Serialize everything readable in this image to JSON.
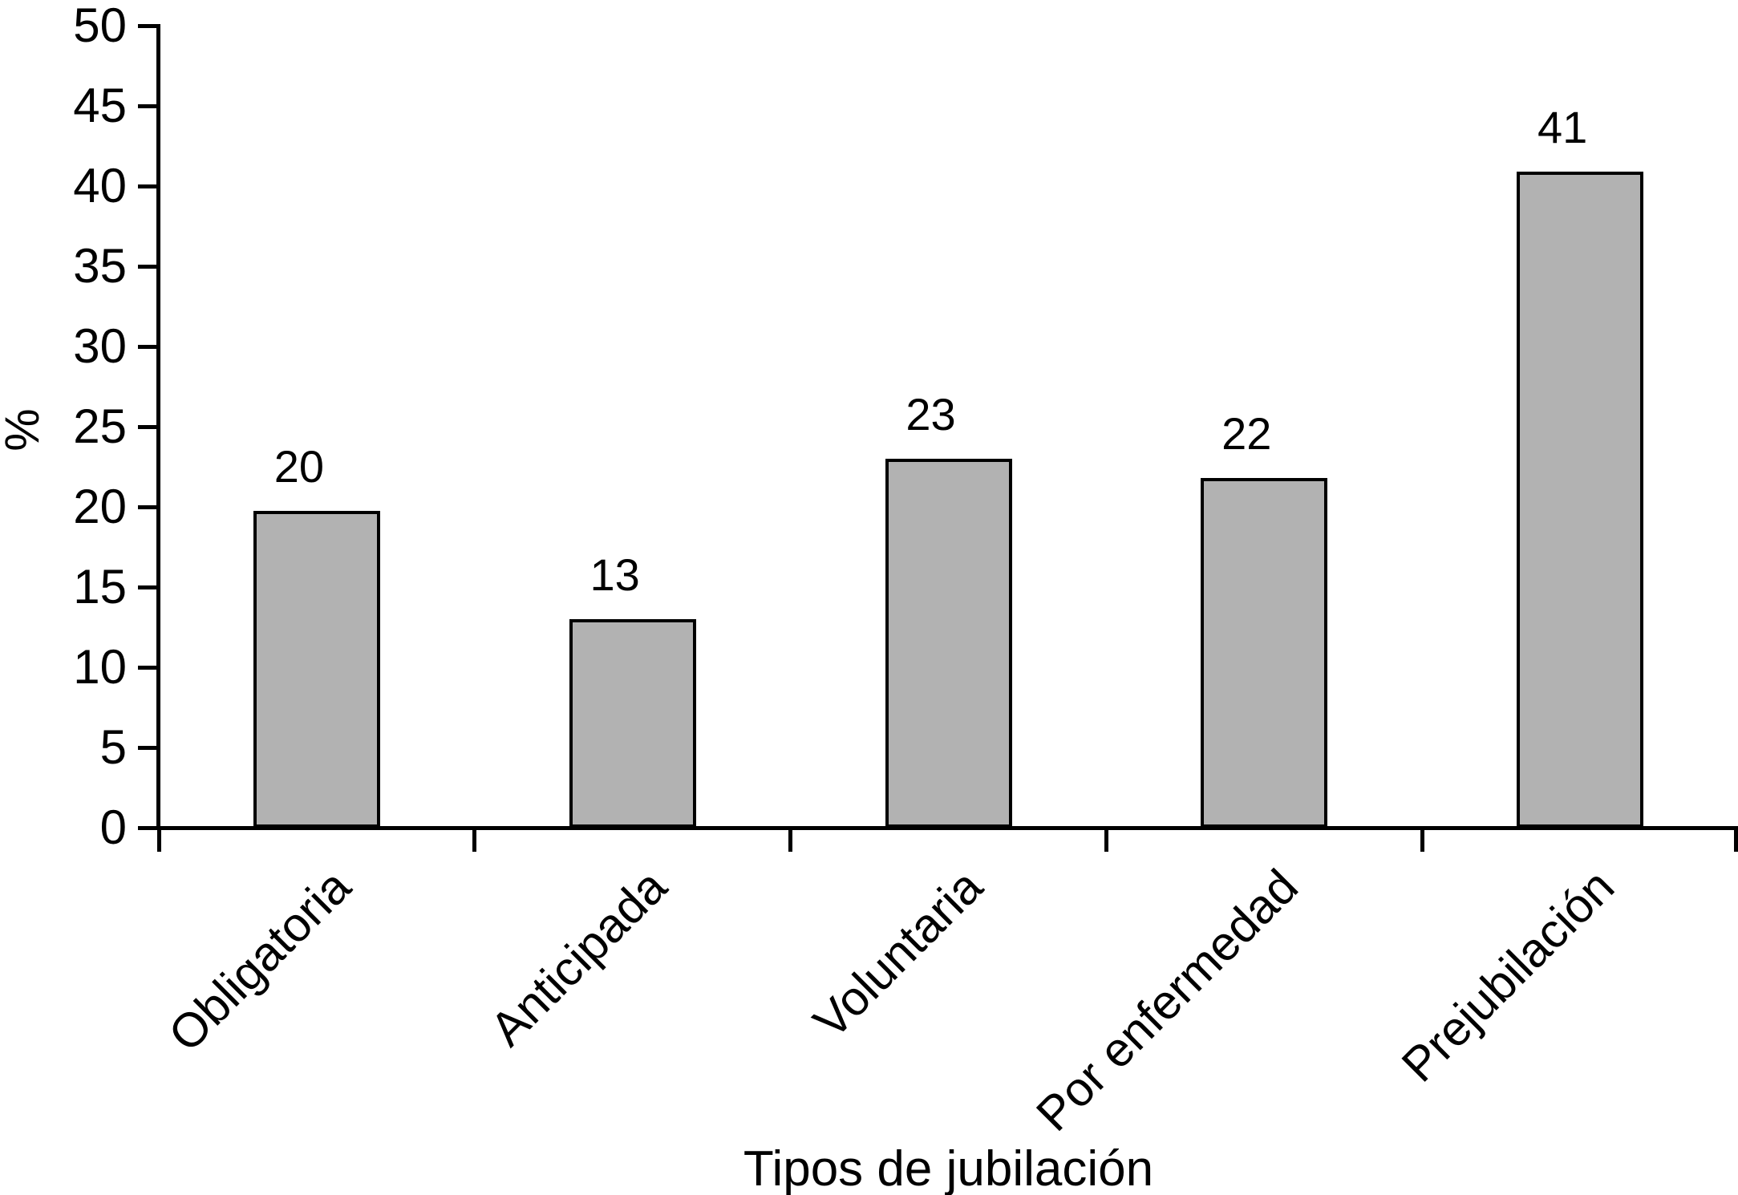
{
  "figure": {
    "background": "#ffffff"
  },
  "chart_data": {
    "type": "bar",
    "title": "",
    "xlabel": "Tipos de jubilación",
    "ylabel": "%",
    "categories": [
      "Obligatoria",
      "Anticipada",
      "Voluntaria",
      "Por enfermedad",
      "Prejubilación"
    ],
    "values": [
      20,
      13,
      23,
      22,
      41
    ],
    "bar_labels": [
      "20",
      "13",
      "23",
      "22",
      "41"
    ],
    "drawn_values": [
      19.75,
      13,
      23,
      21.8,
      40.9
    ],
    "y_ticks": [
      0,
      5,
      10,
      15,
      20,
      25,
      30,
      35,
      40,
      45,
      50
    ],
    "ylim": [
      0,
      50
    ],
    "grid": false,
    "legend_position": "none",
    "series_count": 1,
    "colors": {
      "bar_fill": "#b2b2b2",
      "bar_border": "#000000",
      "axis": "#000000",
      "text": "#000000"
    }
  }
}
